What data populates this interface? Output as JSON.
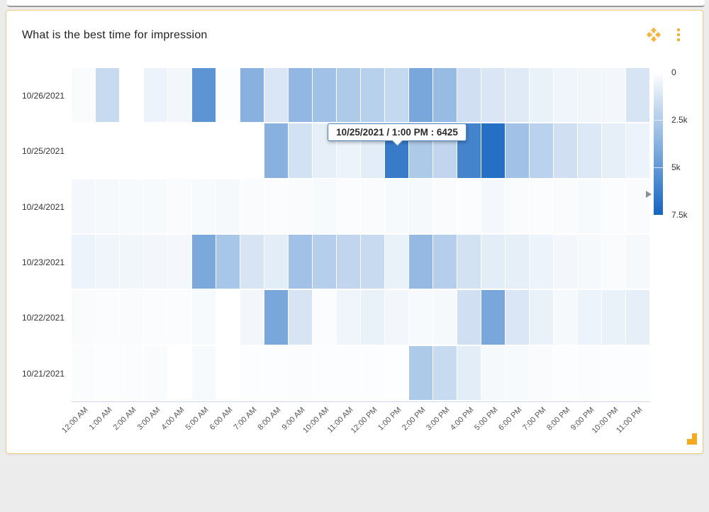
{
  "card": {
    "title": "What is the best time for impression"
  },
  "header_icons": [
    {
      "name": "move-icon"
    },
    {
      "name": "more-options-icon"
    }
  ],
  "tooltip": {
    "text": "10/25/2021 / 1:00 PM : 6425"
  },
  "legend": {
    "labels": [
      "0",
      "2.5k",
      "5k",
      "7.5k"
    ],
    "min": 0,
    "max": 7500,
    "pointer_value": 6425
  },
  "colors": {
    "accent_orange": "#F6B236",
    "card_border": "#F4CF7D",
    "heat_low": "#FFFFFF",
    "heat_high": "#1565C0",
    "tooltip_border": "#4E80BD"
  },
  "chart_data": {
    "type": "heatmap",
    "title": "What is the best time for impression",
    "x": [
      "12:00 AM",
      "1:00 AM",
      "2:00 AM",
      "3:00 AM",
      "4:00 AM",
      "5:00 AM",
      "6:00 AM",
      "7:00 AM",
      "8:00 AM",
      "9:00 AM",
      "10:00 AM",
      "11:00 AM",
      "12:00 PM",
      "1:00 PM",
      "2:00 PM",
      "3:00 PM",
      "4:00 PM",
      "5:00 PM",
      "6:00 PM",
      "7:00 PM",
      "8:00 PM",
      "9:00 PM",
      "10:00 PM",
      "11:00 PM"
    ],
    "y": [
      "10/26/2021",
      "10/25/2021",
      "10/24/2021",
      "10/23/2021",
      "10/22/2021",
      "10/21/2021"
    ],
    "value_range": [
      0,
      7500
    ],
    "legend_position": "right",
    "series": [
      {
        "name": "10/26/2021",
        "values": [
          200,
          1800,
          0,
          600,
          400,
          5200,
          100,
          3800,
          1200,
          3500,
          3000,
          2600,
          2300,
          1900,
          4300,
          3300,
          1500,
          1200,
          1000,
          700,
          500,
          450,
          400,
          1300
        ]
      },
      {
        "name": "10/25/2021",
        "values": [
          null,
          null,
          null,
          null,
          null,
          null,
          null,
          null,
          3800,
          1400,
          800,
          600,
          900,
          6425,
          2600,
          2000,
          6000,
          7000,
          3000,
          2200,
          1500,
          1100,
          800,
          600
        ]
      },
      {
        "name": "10/24/2021",
        "values": [
          350,
          300,
          250,
          250,
          200,
          250,
          300,
          200,
          150,
          200,
          250,
          150,
          200,
          250,
          300,
          200,
          150,
          350,
          200,
          150,
          200,
          250,
          150,
          200
        ]
      },
      {
        "name": "10/23/2021",
        "values": [
          600,
          500,
          450,
          400,
          350,
          4200,
          2800,
          1300,
          900,
          3000,
          2400,
          2000,
          1800,
          700,
          3400,
          2400,
          1400,
          900,
          800,
          600,
          400,
          300,
          200,
          300
        ]
      },
      {
        "name": "10/22/2021",
        "values": [
          200,
          150,
          200,
          150,
          150,
          250,
          0,
          400,
          4300,
          1300,
          150,
          500,
          700,
          400,
          250,
          300,
          1500,
          4300,
          1200,
          700,
          300,
          600,
          700,
          800
        ]
      },
      {
        "name": "10/21/2021",
        "values": [
          150,
          100,
          150,
          200,
          0,
          250,
          0,
          100,
          100,
          150,
          100,
          100,
          100,
          50,
          2600,
          1800,
          900,
          300,
          250,
          200,
          100,
          150,
          100,
          100
        ]
      }
    ],
    "highlighted_cell": {
      "date": "10/25/2021",
      "hour": "1:00 PM",
      "value": 6425
    }
  }
}
